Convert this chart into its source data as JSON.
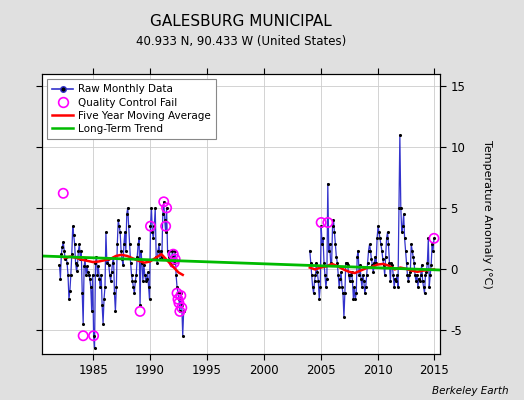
{
  "title": "GALESBURG MUNICIPAL",
  "subtitle": "40.933 N, 90.433 W (United States)",
  "ylabel": "Temperature Anomaly (°C)",
  "watermark": "Berkeley Earth",
  "xlim": [
    1980.5,
    2015.5
  ],
  "ylim": [
    -7,
    16
  ],
  "yticks": [
    -5,
    0,
    5,
    10,
    15
  ],
  "xticks": [
    1985,
    1990,
    1995,
    2000,
    2005,
    2010,
    2015
  ],
  "bg_color": "#e0e0e0",
  "plot_bg_color": "#ffffff",
  "raw_color": "#3333cc",
  "qc_color": "#ff00ff",
  "moving_avg_color": "#ff0000",
  "trend_color": "#00bb00",
  "raw_monthly_data": [
    [
      1982.042,
      0.3
    ],
    [
      1982.125,
      -0.8
    ],
    [
      1982.208,
      1.2
    ],
    [
      1982.292,
      1.8
    ],
    [
      1982.375,
      2.2
    ],
    [
      1982.458,
      1.5
    ],
    [
      1982.542,
      0.8
    ],
    [
      1982.625,
      1.0
    ],
    [
      1982.708,
      0.5
    ],
    [
      1982.792,
      -0.5
    ],
    [
      1982.875,
      -2.5
    ],
    [
      1982.958,
      -1.8
    ],
    [
      1983.042,
      -0.5
    ],
    [
      1983.125,
      1.2
    ],
    [
      1983.208,
      3.5
    ],
    [
      1983.292,
      2.8
    ],
    [
      1983.375,
      2.0
    ],
    [
      1983.458,
      0.5
    ],
    [
      1983.542,
      -0.2
    ],
    [
      1983.625,
      0.3
    ],
    [
      1983.708,
      1.5
    ],
    [
      1983.792,
      2.0
    ],
    [
      1983.875,
      0.8
    ],
    [
      1983.958,
      1.5
    ],
    [
      1984.042,
      -2.0
    ],
    [
      1984.125,
      -4.5
    ],
    [
      1984.208,
      0.2
    ],
    [
      1984.292,
      0.8
    ],
    [
      1984.375,
      -0.5
    ],
    [
      1984.458,
      0.2
    ],
    [
      1984.542,
      -0.3
    ],
    [
      1984.625,
      -0.5
    ],
    [
      1984.708,
      -0.8
    ],
    [
      1984.792,
      -1.5
    ],
    [
      1984.875,
      -3.5
    ],
    [
      1984.958,
      -0.5
    ],
    [
      1985.042,
      -5.5
    ],
    [
      1985.125,
      -6.5
    ],
    [
      1985.208,
      0.5
    ],
    [
      1985.292,
      1.0
    ],
    [
      1985.375,
      -0.5
    ],
    [
      1985.458,
      0.2
    ],
    [
      1985.542,
      -0.8
    ],
    [
      1985.625,
      -1.5
    ],
    [
      1985.708,
      -0.5
    ],
    [
      1985.792,
      -3.0
    ],
    [
      1985.875,
      -4.5
    ],
    [
      1985.958,
      -2.5
    ],
    [
      1986.042,
      -1.5
    ],
    [
      1986.125,
      3.0
    ],
    [
      1986.208,
      0.5
    ],
    [
      1986.292,
      0.8
    ],
    [
      1986.375,
      0.3
    ],
    [
      1986.458,
      -0.5
    ],
    [
      1986.542,
      -1.0
    ],
    [
      1986.625,
      -0.3
    ],
    [
      1986.708,
      0.5
    ],
    [
      1986.792,
      1.0
    ],
    [
      1986.875,
      -2.0
    ],
    [
      1986.958,
      -3.5
    ],
    [
      1987.042,
      -1.5
    ],
    [
      1987.125,
      2.0
    ],
    [
      1987.208,
      4.0
    ],
    [
      1987.292,
      3.5
    ],
    [
      1987.375,
      3.0
    ],
    [
      1987.458,
      1.5
    ],
    [
      1987.542,
      0.8
    ],
    [
      1987.625,
      0.3
    ],
    [
      1987.708,
      2.0
    ],
    [
      1987.792,
      3.0
    ],
    [
      1987.875,
      1.5
    ],
    [
      1987.958,
      4.5
    ],
    [
      1988.042,
      5.0
    ],
    [
      1988.125,
      3.5
    ],
    [
      1988.208,
      2.0
    ],
    [
      1988.292,
      0.5
    ],
    [
      1988.375,
      -0.5
    ],
    [
      1988.458,
      -1.0
    ],
    [
      1988.542,
      -1.5
    ],
    [
      1988.625,
      -2.0
    ],
    [
      1988.708,
      -1.0
    ],
    [
      1988.792,
      -0.5
    ],
    [
      1988.875,
      1.0
    ],
    [
      1988.958,
      2.0
    ],
    [
      1989.042,
      2.5
    ],
    [
      1989.125,
      -3.0
    ],
    [
      1989.208,
      1.5
    ],
    [
      1989.292,
      0.5
    ],
    [
      1989.375,
      -1.0
    ],
    [
      1989.458,
      0.3
    ],
    [
      1989.542,
      -0.5
    ],
    [
      1989.625,
      -1.0
    ],
    [
      1989.708,
      -0.8
    ],
    [
      1989.792,
      -0.3
    ],
    [
      1989.875,
      -1.5
    ],
    [
      1989.958,
      -2.5
    ],
    [
      1990.042,
      3.5
    ],
    [
      1990.125,
      5.0
    ],
    [
      1990.208,
      3.0
    ],
    [
      1990.292,
      2.5
    ],
    [
      1990.375,
      3.5
    ],
    [
      1990.458,
      5.0
    ],
    [
      1990.542,
      1.0
    ],
    [
      1990.625,
      0.5
    ],
    [
      1990.708,
      1.5
    ],
    [
      1990.792,
      2.0
    ],
    [
      1990.875,
      0.8
    ],
    [
      1990.958,
      1.5
    ],
    [
      1991.042,
      1.0
    ],
    [
      1991.125,
      4.5
    ],
    [
      1991.208,
      5.5
    ],
    [
      1991.292,
      4.0
    ],
    [
      1991.375,
      3.0
    ],
    [
      1991.458,
      5.0
    ],
    [
      1991.542,
      1.5
    ],
    [
      1991.625,
      1.0
    ],
    [
      1991.708,
      1.5
    ],
    [
      1991.792,
      0.5
    ],
    [
      1991.875,
      0.3
    ],
    [
      1991.958,
      1.5
    ],
    [
      1992.042,
      1.0
    ],
    [
      1992.125,
      0.5
    ],
    [
      1992.208,
      1.5
    ],
    [
      1992.292,
      -0.5
    ],
    [
      1992.375,
      -1.5
    ],
    [
      1992.458,
      -2.0
    ],
    [
      1992.542,
      -2.5
    ],
    [
      1992.625,
      -3.5
    ],
    [
      1992.708,
      -2.0
    ],
    [
      1992.792,
      -3.0
    ],
    [
      1992.875,
      -5.5
    ],
    [
      1992.958,
      -3.5
    ],
    [
      2004.042,
      1.5
    ],
    [
      2004.125,
      0.5
    ],
    [
      2004.208,
      -0.5
    ],
    [
      2004.292,
      -1.5
    ],
    [
      2004.375,
      -2.0
    ],
    [
      2004.458,
      -1.0
    ],
    [
      2004.542,
      -0.5
    ],
    [
      2004.625,
      0.5
    ],
    [
      2004.708,
      -0.3
    ],
    [
      2004.792,
      -1.0
    ],
    [
      2004.875,
      -2.5
    ],
    [
      2004.958,
      -1.5
    ],
    [
      2005.042,
      3.5
    ],
    [
      2005.125,
      2.0
    ],
    [
      2005.208,
      2.5
    ],
    [
      2005.292,
      0.5
    ],
    [
      2005.375,
      -0.5
    ],
    [
      2005.458,
      -1.5
    ],
    [
      2005.542,
      -0.8
    ],
    [
      2005.625,
      7.0
    ],
    [
      2005.708,
      1.5
    ],
    [
      2005.792,
      2.0
    ],
    [
      2005.875,
      0.5
    ],
    [
      2005.958,
      0.3
    ],
    [
      2006.042,
      3.5
    ],
    [
      2006.125,
      4.0
    ],
    [
      2006.208,
      3.0
    ],
    [
      2006.292,
      2.0
    ],
    [
      2006.375,
      1.0
    ],
    [
      2006.458,
      0.5
    ],
    [
      2006.542,
      -0.5
    ],
    [
      2006.625,
      -1.5
    ],
    [
      2006.708,
      -0.8
    ],
    [
      2006.792,
      -0.3
    ],
    [
      2006.875,
      -1.5
    ],
    [
      2006.958,
      -2.0
    ],
    [
      2007.042,
      -4.0
    ],
    [
      2007.125,
      -2.0
    ],
    [
      2007.208,
      0.5
    ],
    [
      2007.292,
      0.5
    ],
    [
      2007.375,
      0.3
    ],
    [
      2007.458,
      -0.5
    ],
    [
      2007.542,
      -1.0
    ],
    [
      2007.625,
      -0.5
    ],
    [
      2007.708,
      -0.3
    ],
    [
      2007.792,
      -1.0
    ],
    [
      2007.875,
      -2.5
    ],
    [
      2007.958,
      -1.5
    ],
    [
      2008.042,
      -2.5
    ],
    [
      2008.125,
      -2.0
    ],
    [
      2008.208,
      1.0
    ],
    [
      2008.292,
      1.5
    ],
    [
      2008.375,
      -0.5
    ],
    [
      2008.458,
      0.3
    ],
    [
      2008.542,
      -0.8
    ],
    [
      2008.625,
      -1.5
    ],
    [
      2008.708,
      -0.5
    ],
    [
      2008.792,
      -1.0
    ],
    [
      2008.875,
      -2.0
    ],
    [
      2008.958,
      -1.5
    ],
    [
      2009.042,
      -0.5
    ],
    [
      2009.125,
      0.5
    ],
    [
      2009.208,
      1.5
    ],
    [
      2009.292,
      2.0
    ],
    [
      2009.375,
      1.5
    ],
    [
      2009.458,
      0.8
    ],
    [
      2009.542,
      0.3
    ],
    [
      2009.625,
      -0.3
    ],
    [
      2009.708,
      0.5
    ],
    [
      2009.792,
      1.0
    ],
    [
      2009.875,
      0.5
    ],
    [
      2009.958,
      2.5
    ],
    [
      2010.042,
      3.5
    ],
    [
      2010.125,
      3.0
    ],
    [
      2010.208,
      2.5
    ],
    [
      2010.292,
      2.0
    ],
    [
      2010.375,
      1.5
    ],
    [
      2010.458,
      0.8
    ],
    [
      2010.542,
      0.3
    ],
    [
      2010.625,
      -0.5
    ],
    [
      2010.708,
      1.0
    ],
    [
      2010.792,
      2.5
    ],
    [
      2010.875,
      3.0
    ],
    [
      2010.958,
      2.0
    ],
    [
      2011.042,
      0.5
    ],
    [
      2011.125,
      -1.0
    ],
    [
      2011.208,
      0.5
    ],
    [
      2011.292,
      0.3
    ],
    [
      2011.375,
      -0.5
    ],
    [
      2011.458,
      -1.5
    ],
    [
      2011.542,
      -0.8
    ],
    [
      2011.625,
      -1.0
    ],
    [
      2011.708,
      -0.5
    ],
    [
      2011.792,
      -1.5
    ],
    [
      2011.875,
      5.0
    ],
    [
      2011.958,
      11.0
    ],
    [
      2012.042,
      5.0
    ],
    [
      2012.125,
      3.0
    ],
    [
      2012.208,
      3.5
    ],
    [
      2012.292,
      4.5
    ],
    [
      2012.375,
      2.5
    ],
    [
      2012.458,
      1.5
    ],
    [
      2012.542,
      0.5
    ],
    [
      2012.625,
      -0.5
    ],
    [
      2012.708,
      -1.0
    ],
    [
      2012.792,
      -0.5
    ],
    [
      2012.875,
      -0.3
    ],
    [
      2012.958,
      2.0
    ],
    [
      2013.042,
      1.5
    ],
    [
      2013.125,
      1.0
    ],
    [
      2013.208,
      0.5
    ],
    [
      2013.292,
      -0.5
    ],
    [
      2013.375,
      -1.0
    ],
    [
      2013.458,
      -0.5
    ],
    [
      2013.542,
      -1.5
    ],
    [
      2013.625,
      -0.8
    ],
    [
      2013.708,
      -1.0
    ],
    [
      2013.792,
      -0.5
    ],
    [
      2013.875,
      0.3
    ],
    [
      2013.958,
      -1.0
    ],
    [
      2014.042,
      -1.5
    ],
    [
      2014.125,
      -2.0
    ],
    [
      2014.208,
      -0.5
    ],
    [
      2014.292,
      -0.3
    ],
    [
      2014.375,
      0.5
    ],
    [
      2014.458,
      2.5
    ],
    [
      2014.542,
      -1.5
    ],
    [
      2014.625,
      -0.5
    ],
    [
      2014.708,
      0.3
    ],
    [
      2014.792,
      2.0
    ],
    [
      2014.875,
      1.5
    ],
    [
      2014.958,
      2.5
    ]
  ],
  "qc_fail_points": [
    [
      1982.375,
      6.2
    ],
    [
      1984.125,
      -5.5
    ],
    [
      1985.042,
      -5.5
    ],
    [
      1989.125,
      -3.5
    ],
    [
      1990.042,
      3.5
    ],
    [
      1991.208,
      5.5
    ],
    [
      1991.375,
      3.5
    ],
    [
      1991.458,
      5.0
    ],
    [
      1992.042,
      1.2
    ],
    [
      1992.125,
      0.5
    ],
    [
      1992.208,
      0.8
    ],
    [
      1992.375,
      -2.0
    ],
    [
      1992.458,
      -2.5
    ],
    [
      1992.542,
      -2.8
    ],
    [
      1992.625,
      -3.5
    ],
    [
      1992.708,
      -2.2
    ],
    [
      1992.792,
      -3.2
    ],
    [
      2005.625,
      3.8
    ],
    [
      2005.042,
      3.8
    ],
    [
      2014.958,
      2.5
    ]
  ],
  "moving_avg_pre": [
    [
      1982.5,
      0.9
    ],
    [
      1983.0,
      1.0
    ],
    [
      1983.5,
      0.9
    ],
    [
      1984.0,
      0.75
    ],
    [
      1984.5,
      0.65
    ],
    [
      1985.0,
      0.55
    ],
    [
      1985.5,
      0.6
    ],
    [
      1986.0,
      0.7
    ],
    [
      1986.5,
      0.8
    ],
    [
      1987.0,
      1.05
    ],
    [
      1987.5,
      1.15
    ],
    [
      1988.0,
      1.05
    ],
    [
      1988.5,
      0.85
    ],
    [
      1989.0,
      0.65
    ],
    [
      1989.5,
      0.5
    ],
    [
      1990.0,
      0.6
    ],
    [
      1990.5,
      0.9
    ],
    [
      1991.0,
      1.2
    ],
    [
      1991.5,
      0.7
    ],
    [
      1992.0,
      0.2
    ],
    [
      1992.5,
      -0.3
    ],
    [
      1992.875,
      -0.5
    ]
  ],
  "moving_avg_post": [
    [
      2004.042,
      0.1
    ],
    [
      2004.5,
      -0.05
    ],
    [
      2005.0,
      0.1
    ],
    [
      2005.5,
      0.2
    ],
    [
      2006.0,
      0.4
    ],
    [
      2006.5,
      0.2
    ],
    [
      2007.0,
      -0.05
    ],
    [
      2007.5,
      -0.25
    ],
    [
      2008.0,
      -0.35
    ],
    [
      2008.5,
      -0.15
    ],
    [
      2009.0,
      0.05
    ],
    [
      2009.5,
      0.15
    ],
    [
      2010.0,
      0.35
    ],
    [
      2010.5,
      0.4
    ],
    [
      2011.0,
      0.25
    ],
    [
      2011.5,
      -0.05
    ],
    [
      2012.0,
      0.1
    ],
    [
      2012.5,
      0.0
    ],
    [
      2013.0,
      -0.15
    ],
    [
      2013.5,
      -0.25
    ],
    [
      2014.0,
      -0.15
    ],
    [
      2014.958,
      -0.05
    ]
  ],
  "trend_x": [
    1980.5,
    2015.5
  ],
  "trend_y": [
    1.05,
    -0.1
  ]
}
